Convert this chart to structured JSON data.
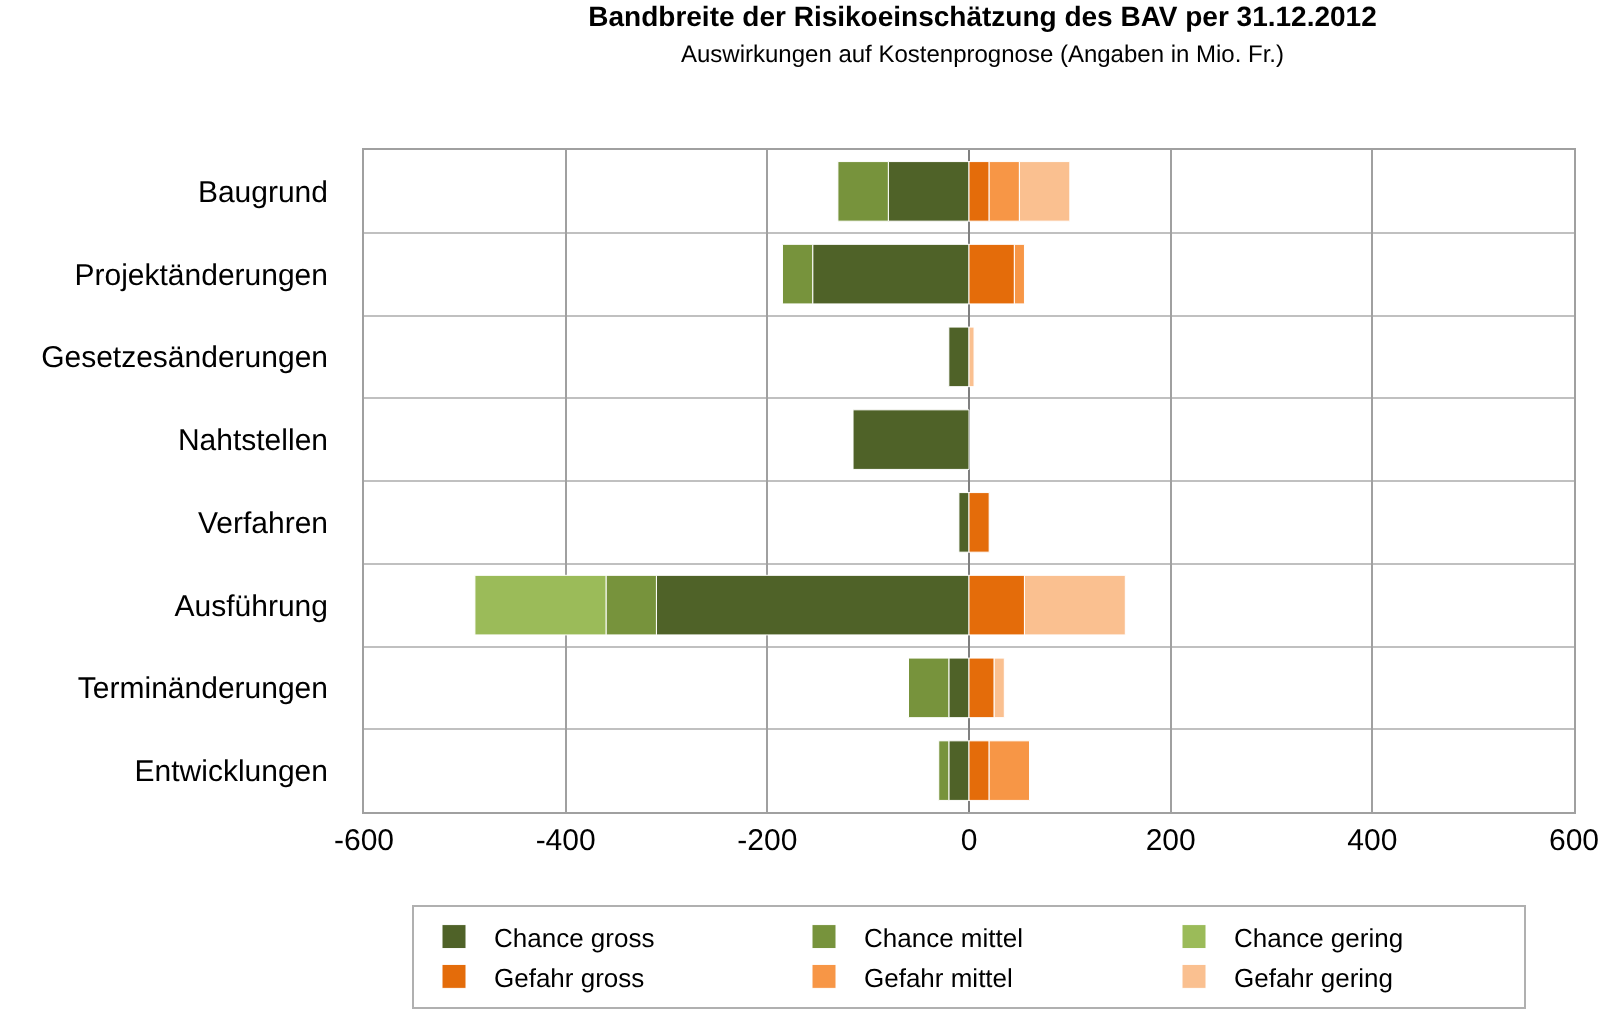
{
  "chart_data": {
    "type": "bar",
    "orientation": "horizontal",
    "stacked": true,
    "title": "Bandbreite der Risikoeinschätzung des BAV per 31.12.2012",
    "subtitle": "Auswirkungen auf Kostenprognose (Angaben in Mio. Fr.)",
    "categories": [
      "Baugrund",
      "Projektänderungen",
      "Gesetzesänderungen",
      "Nahtstellen",
      "Verfahren",
      "Ausführung",
      "Terminänderungen",
      "Entwicklungen"
    ],
    "series": [
      {
        "name": "Chance gross",
        "color": "#4f6228",
        "values": [
          -80,
          -155,
          -20,
          -115,
          -10,
          -310,
          -20,
          -20
        ]
      },
      {
        "name": "Chance mittel",
        "color": "#77933c",
        "values": [
          -50,
          -30,
          null,
          null,
          null,
          -50,
          -40,
          -10
        ]
      },
      {
        "name": "Chance gering",
        "color": "#9bbb59",
        "values": [
          null,
          null,
          null,
          null,
          null,
          -130,
          null,
          null
        ]
      },
      {
        "name": "Gefahr gross",
        "color": "#e46c0a",
        "values": [
          20,
          45,
          null,
          null,
          20,
          55,
          25,
          20
        ]
      },
      {
        "name": "Gefahr mittel",
        "color": "#f79646",
        "values": [
          30,
          10,
          null,
          null,
          null,
          null,
          null,
          40
        ]
      },
      {
        "name": "Gefahr gering",
        "color": "#fac090",
        "values": [
          50,
          null,
          5,
          null,
          null,
          100,
          10,
          null
        ]
      }
    ],
    "xlim": [
      -600,
      600
    ],
    "xticks": [
      -600,
      -400,
      -200,
      0,
      200,
      400,
      600
    ],
    "grid": true,
    "legend": "bottom"
  }
}
